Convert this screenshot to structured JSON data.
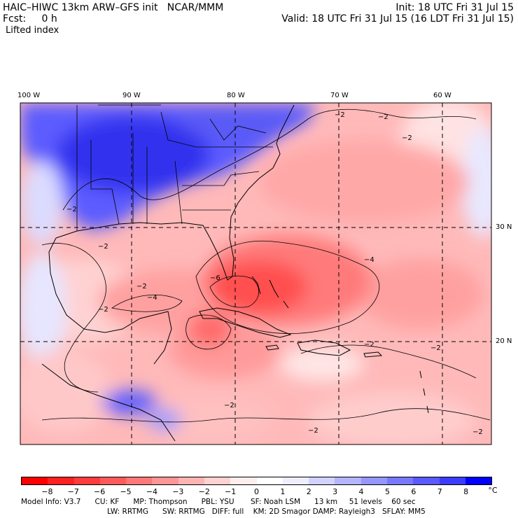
{
  "header": {
    "title": "HAIC–HIWC 13km ARW–GFS init   NCAR/MMM",
    "forecast": "Fcst:     0 h",
    "field": "Lifted index",
    "init": "Init: 18 UTC Fri 31 Jul 15",
    "valid": "Valid: 18 UTC Fri 31 Jul 15 (16 LDT Fri 31 Jul 15)"
  },
  "map": {
    "lon_labels": [
      "100 W",
      "90 W",
      "80 W",
      "70 W",
      "60 W"
    ],
    "lat_labels": [
      "30 N",
      "20 N"
    ],
    "contour_label": "−2",
    "contour_label_strong": "−4",
    "contour_label_max": "−6"
  },
  "colorbar": {
    "labels": [
      "−8",
      "−7",
      "−6",
      "−5",
      "−4",
      "−3",
      "−2",
      "−1",
      "0",
      "1",
      "2",
      "3",
      "4",
      "5",
      "6",
      "7",
      "8"
    ],
    "unit": "°C",
    "colors": [
      "#ff0000",
      "#ff2020",
      "#ff3c3c",
      "#ff5a5a",
      "#ff7878",
      "#ff9696",
      "#ffb4b4",
      "#ffd2d2",
      "#ffeeee",
      "#ffffff",
      "#eeeeff",
      "#d2d2ff",
      "#b4b4ff",
      "#9696ff",
      "#7878ff",
      "#5a5aff",
      "#3c3cff",
      "#0000ff"
    ]
  },
  "model_info": {
    "line1": "Model Info: V3.7      CU: KF      MP: Thompson      PBL: YSU       SF: Noah LSM      13 km     51 levels    60 sec",
    "line2": "LW: RRTMG      SW: RRTMG   DIFF: full    KM: 2D Smagor DAMP: Rayleigh3   SFLAY: MM5"
  }
}
